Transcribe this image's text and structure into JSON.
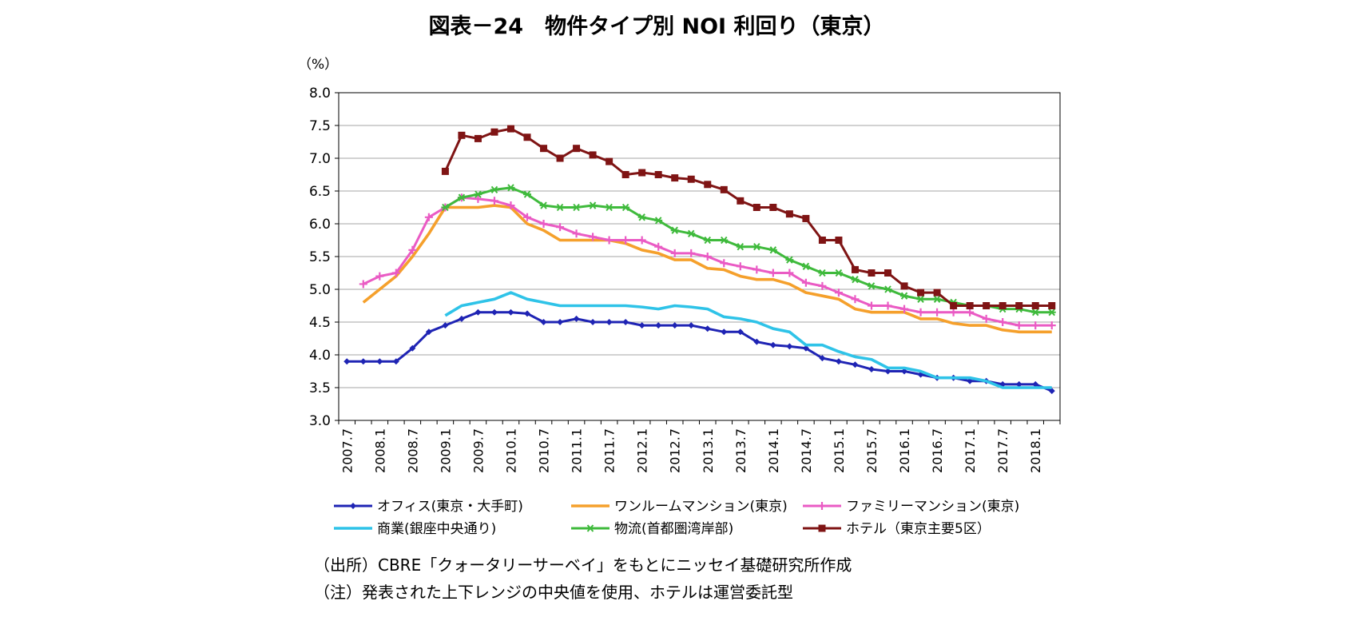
{
  "chart_data": {
    "type": "line",
    "title": "図表－24　物件タイプ別 NOI 利回り（東京）",
    "ylabel": "（%）",
    "ylim": [
      3.0,
      8.0
    ],
    "ytick_step": 0.5,
    "grid": true,
    "legend_position": "bottom",
    "x": [
      "2007.7",
      "2007.10",
      "2008.1",
      "2008.4",
      "2008.7",
      "2008.10",
      "2009.1",
      "2009.4",
      "2009.7",
      "2009.10",
      "2010.1",
      "2010.4",
      "2010.7",
      "2010.10",
      "2011.1",
      "2011.4",
      "2011.7",
      "2011.10",
      "2012.1",
      "2012.4",
      "2012.7",
      "2012.10",
      "2013.1",
      "2013.4",
      "2013.7",
      "2013.10",
      "2014.1",
      "2014.4",
      "2014.7",
      "2014.10",
      "2015.1",
      "2015.4",
      "2015.7",
      "2015.10",
      "2016.1",
      "2016.4",
      "2016.7",
      "2016.10",
      "2017.1",
      "2017.4",
      "2017.7",
      "2017.10",
      "2018.1",
      "2018.4"
    ],
    "x_tick_labels": [
      "2007.7",
      "2008.1",
      "2008.7",
      "2009.1",
      "2009.7",
      "2010.1",
      "2010.7",
      "2011.1",
      "2011.7",
      "2012.1",
      "2012.7",
      "2013.1",
      "2013.7",
      "2014.1",
      "2014.7",
      "2015.1",
      "2015.7",
      "2016.1",
      "2016.7",
      "2017.1",
      "2017.7",
      "2018.1"
    ],
    "series": [
      {
        "name": "オフィス(東京・大手町)",
        "color": "#1f24b4",
        "marker": "diamond",
        "values": [
          3.9,
          3.9,
          3.9,
          3.9,
          4.1,
          4.35,
          4.45,
          4.55,
          4.65,
          4.65,
          4.65,
          4.63,
          4.5,
          4.5,
          4.55,
          4.5,
          4.5,
          4.5,
          4.45,
          4.45,
          4.45,
          4.45,
          4.4,
          4.35,
          4.35,
          4.2,
          4.15,
          4.13,
          4.1,
          3.95,
          3.9,
          3.85,
          3.78,
          3.75,
          3.75,
          3.7,
          3.65,
          3.65,
          3.6,
          3.6,
          3.55,
          3.55,
          3.55,
          3.45
        ]
      },
      {
        "name": "ワンルームマンション(東京)",
        "color": "#f5a02c",
        "marker": "none",
        "values": [
          null,
          4.8,
          5.0,
          5.2,
          5.5,
          5.85,
          6.25,
          6.25,
          6.25,
          6.28,
          6.25,
          6.0,
          5.9,
          5.75,
          5.75,
          5.75,
          5.75,
          5.7,
          5.6,
          5.55,
          5.45,
          5.45,
          5.32,
          5.3,
          5.2,
          5.15,
          5.15,
          5.08,
          4.95,
          4.9,
          4.85,
          4.7,
          4.65,
          4.65,
          4.65,
          4.55,
          4.55,
          4.48,
          4.45,
          4.45,
          4.38,
          4.35,
          4.35,
          4.35
        ]
      },
      {
        "name": "ファミリーマンション(東京)",
        "color": "#ea5bc4",
        "marker": "plus",
        "values": [
          null,
          5.08,
          5.2,
          5.25,
          5.6,
          6.1,
          6.25,
          6.4,
          6.38,
          6.35,
          6.28,
          6.1,
          6.0,
          5.95,
          5.85,
          5.8,
          5.75,
          5.75,
          5.75,
          5.65,
          5.55,
          5.55,
          5.5,
          5.4,
          5.35,
          5.3,
          5.25,
          5.25,
          5.1,
          5.05,
          4.95,
          4.85,
          4.75,
          4.75,
          4.7,
          4.65,
          4.65,
          4.65,
          4.65,
          4.55,
          4.5,
          4.45,
          4.45,
          4.45
        ]
      },
      {
        "name": "商業(銀座中央通り)",
        "color": "#2fc3e8",
        "marker": "none",
        "values": [
          null,
          null,
          null,
          null,
          null,
          null,
          4.6,
          4.75,
          4.8,
          4.85,
          4.95,
          4.85,
          4.8,
          4.75,
          4.75,
          4.75,
          4.75,
          4.75,
          4.73,
          4.7,
          4.75,
          4.73,
          4.7,
          4.58,
          4.55,
          4.5,
          4.4,
          4.35,
          4.15,
          4.15,
          4.05,
          3.97,
          3.93,
          3.8,
          3.8,
          3.75,
          3.65,
          3.65,
          3.65,
          3.6,
          3.5,
          3.5,
          3.5,
          3.5
        ]
      },
      {
        "name": "物流(首都圏湾岸部)",
        "color": "#3fba3c",
        "marker": "star",
        "values": [
          null,
          null,
          null,
          null,
          null,
          null,
          6.25,
          6.4,
          6.45,
          6.52,
          6.55,
          6.45,
          6.28,
          6.25,
          6.25,
          6.28,
          6.25,
          6.25,
          6.1,
          6.05,
          5.9,
          5.85,
          5.75,
          5.75,
          5.65,
          5.65,
          5.6,
          5.45,
          5.35,
          5.25,
          5.25,
          5.15,
          5.05,
          5.0,
          4.9,
          4.85,
          4.85,
          4.8,
          4.75,
          4.75,
          4.7,
          4.7,
          4.65,
          4.65
        ]
      },
      {
        "name": "ホテル（東京主要5区）",
        "color": "#7f1414",
        "marker": "square",
        "values": [
          null,
          null,
          null,
          null,
          null,
          null,
          6.8,
          7.35,
          7.3,
          7.4,
          7.45,
          7.32,
          7.15,
          7.0,
          7.15,
          7.05,
          6.95,
          6.75,
          6.78,
          6.75,
          6.7,
          6.68,
          6.6,
          6.52,
          6.35,
          6.25,
          6.25,
          6.15,
          6.08,
          5.75,
          5.75,
          5.3,
          5.25,
          5.25,
          5.05,
          4.95,
          4.95,
          4.75,
          4.75,
          4.75,
          4.75,
          4.75,
          4.75,
          4.75
        ]
      }
    ]
  },
  "footnotes": {
    "source": "（出所）CBRE「クォータリーサーベイ」をもとにニッセイ基礎研究所作成",
    "note": "（注）発表された上下レンジの中央値を使用、ホテルは運営委託型"
  }
}
